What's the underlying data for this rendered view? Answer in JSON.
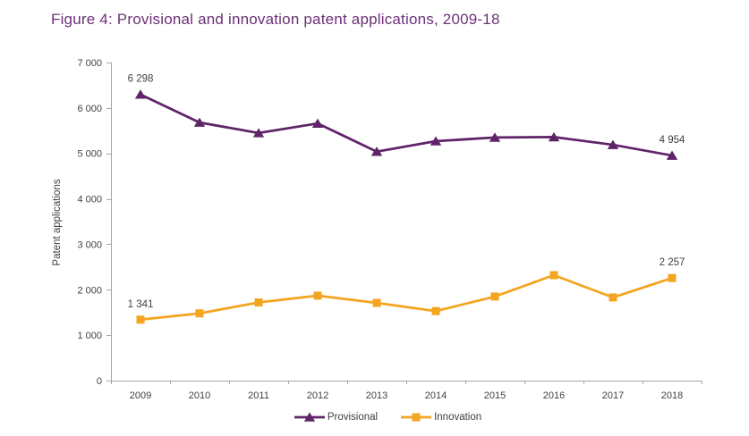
{
  "chart_data": {
    "type": "line",
    "title": "Figure 4: Provisional and innovation patent applications, 2009-18",
    "categories": [
      "2009",
      "2010",
      "2011",
      "2012",
      "2013",
      "2014",
      "2015",
      "2016",
      "2017",
      "2018"
    ],
    "series": [
      {
        "name": "Provisional",
        "color": "#5F2468",
        "marker": "triangle",
        "values": [
          6298,
          5680,
          5450,
          5660,
          5040,
          5270,
          5350,
          5360,
          5190,
          4954
        ]
      },
      {
        "name": "Innovation",
        "color": "#F3A51F",
        "marker": "square",
        "values": [
          1341,
          1480,
          1720,
          1870,
          1710,
          1530,
          1850,
          2320,
          1830,
          2257
        ]
      }
    ],
    "point_labels": [
      {
        "series": 0,
        "index": 0,
        "text": "6 298"
      },
      {
        "series": 0,
        "index": 9,
        "text": "4 954"
      },
      {
        "series": 1,
        "index": 0,
        "text": "1 341"
      },
      {
        "series": 1,
        "index": 9,
        "text": "2 257"
      }
    ],
    "xlabel": "",
    "ylabel": "Patent applications",
    "ylim": [
      0,
      7000
    ],
    "ytick_step": 1000,
    "ytick_labels": [
      "0",
      "1 000",
      "2 000",
      "3 000",
      "4 000",
      "5 000",
      "6 000",
      "7 000"
    ],
    "grid": false,
    "legend_position": "bottom",
    "number_format": "space-thousands"
  },
  "style": {
    "title_color": "#6C3077",
    "axis_color": "#A6A6A6",
    "tick_label_color": "#3F3F3F",
    "data_label_color": "#404040"
  }
}
